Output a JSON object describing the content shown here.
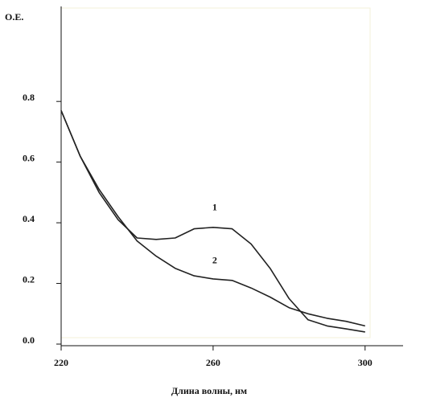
{
  "chart_data": {
    "type": "line",
    "y_label": "O.E.",
    "x_label": "Длина волны, нм",
    "x": [
      220,
      225,
      230,
      235,
      240,
      245,
      250,
      255,
      260,
      265,
      270,
      275,
      280,
      285,
      290,
      295,
      300
    ],
    "series": [
      {
        "name": "1",
        "color": "#222222",
        "values": [
          0.77,
          0.62,
          0.5,
          0.41,
          0.35,
          0.345,
          0.35,
          0.38,
          0.385,
          0.38,
          0.33,
          0.25,
          0.15,
          0.08,
          0.06,
          0.05,
          0.04
        ]
      },
      {
        "name": "2",
        "color": "#222222",
        "values": [
          0.77,
          0.62,
          0.51,
          0.42,
          0.34,
          0.29,
          0.25,
          0.225,
          0.215,
          0.21,
          0.185,
          0.155,
          0.12,
          0.1,
          0.085,
          0.075,
          0.06
        ]
      }
    ],
    "xlim": [
      220,
      310
    ],
    "ylim": [
      0,
      1.1
    ],
    "xticks": [
      220,
      260,
      300
    ],
    "yticks": [
      {
        "value": 0,
        "label": "0.0"
      },
      0.2,
      0.4,
      0.6,
      0.8
    ]
  }
}
